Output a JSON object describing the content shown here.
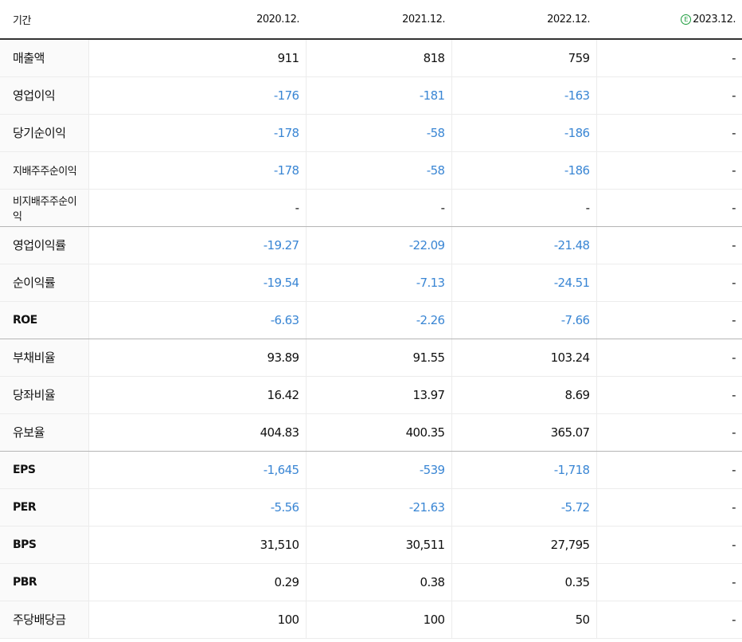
{
  "header": {
    "label": "기간",
    "periods": [
      "2020.12.",
      "2021.12.",
      "2022.12.",
      "2023.12."
    ],
    "estimate_mark": "E",
    "estimate_color": "#1a9b3a"
  },
  "colors": {
    "negative": "#3a86d4",
    "text": "#111111"
  },
  "rows": [
    {
      "label": "매출액",
      "values": [
        "911",
        "818",
        "759",
        "-"
      ]
    },
    {
      "label": "영업이익",
      "values": [
        "-176",
        "-181",
        "-163",
        "-"
      ]
    },
    {
      "label": "당기순이익",
      "values": [
        "-178",
        "-58",
        "-186",
        "-"
      ]
    },
    {
      "label": "지배주주순이익",
      "values": [
        "-178",
        "-58",
        "-186",
        "-"
      ]
    },
    {
      "label": "비지배주주순이익",
      "values": [
        "-",
        "-",
        "-",
        "-"
      ]
    },
    {
      "label": "영업이익률",
      "values": [
        "-19.27",
        "-22.09",
        "-21.48",
        "-"
      ]
    },
    {
      "label": "순이익률",
      "values": [
        "-19.54",
        "-7.13",
        "-24.51",
        "-"
      ]
    },
    {
      "label": "ROE",
      "values": [
        "-6.63",
        "-2.26",
        "-7.66",
        "-"
      ]
    },
    {
      "label": "부채비율",
      "values": [
        "93.89",
        "91.55",
        "103.24",
        "-"
      ]
    },
    {
      "label": "당좌비율",
      "values": [
        "16.42",
        "13.97",
        "8.69",
        "-"
      ]
    },
    {
      "label": "유보율",
      "values": [
        "404.83",
        "400.35",
        "365.07",
        "-"
      ]
    },
    {
      "label": "EPS",
      "values": [
        "-1,645",
        "-539",
        "-1,718",
        "-"
      ]
    },
    {
      "label": "PER",
      "values": [
        "-5.56",
        "-21.63",
        "-5.72",
        "-"
      ]
    },
    {
      "label": "BPS",
      "values": [
        "31,510",
        "30,511",
        "27,795",
        "-"
      ]
    },
    {
      "label": "PBR",
      "values": [
        "0.29",
        "0.38",
        "0.35",
        "-"
      ]
    },
    {
      "label": "주당배당금",
      "values": [
        "100",
        "100",
        "50",
        "-"
      ]
    }
  ]
}
